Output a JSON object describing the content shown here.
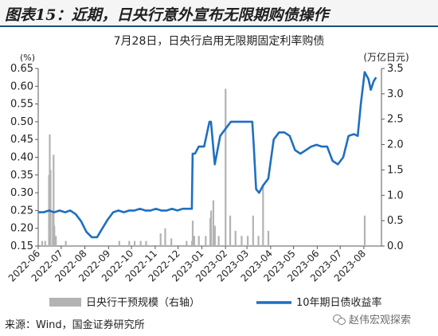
{
  "figure": {
    "title": "图表15：近期，日央行意外宣布无限期购债操作",
    "source": "来源：Wind，国金证券研究所",
    "watermark": "赵伟宏观探索"
  },
  "colors": {
    "line": "#1f6fc0",
    "bar": "#b3b3b3",
    "title_rule": "#1f4e79",
    "axis": "#595959"
  },
  "chart_data": {
    "type": "line",
    "title": "7月28日，日央行启用无限期固定利率购债",
    "left_axis": {
      "unit_label": "(%)",
      "ylim": [
        0.15,
        0.65
      ],
      "ticks": [
        "0.15",
        "0.20",
        "0.25",
        "0.30",
        "0.35",
        "0.40",
        "0.45",
        "0.50",
        "0.55",
        "0.60",
        "0.65"
      ]
    },
    "right_axis": {
      "unit_label": "(万亿日元)",
      "ylim": [
        0,
        3.5
      ],
      "ticks": [
        "0.0",
        "0.5",
        "1.0",
        "1.5",
        "2.0",
        "2.5",
        "3.0",
        "3.5"
      ]
    },
    "x_ticks": [
      "2022-06",
      "2022-07",
      "2022-08",
      "2022-09",
      "2022-10",
      "2022-11",
      "2022-12",
      "2023-01",
      "2023-02",
      "2023-03",
      "2023-04",
      "2023-05",
      "2023-06",
      "2023-07",
      "2023-08"
    ],
    "grid": false,
    "legend_position": "bottom",
    "series": [
      {
        "name": "10年期日债收益率",
        "type": "line",
        "axis": "left",
        "points": [
          [
            "2022-06-01",
            0.245
          ],
          [
            "2022-06-08",
            0.245
          ],
          [
            "2022-06-15",
            0.25
          ],
          [
            "2022-06-22",
            0.245
          ],
          [
            "2022-06-29",
            0.25
          ],
          [
            "2022-07-06",
            0.245
          ],
          [
            "2022-07-13",
            0.25
          ],
          [
            "2022-07-20",
            0.24
          ],
          [
            "2022-07-27",
            0.22
          ],
          [
            "2022-08-03",
            0.19
          ],
          [
            "2022-08-10",
            0.175
          ],
          [
            "2022-08-17",
            0.175
          ],
          [
            "2022-08-24",
            0.2
          ],
          [
            "2022-08-31",
            0.225
          ],
          [
            "2022-09-07",
            0.245
          ],
          [
            "2022-09-14",
            0.25
          ],
          [
            "2022-09-21",
            0.245
          ],
          [
            "2022-09-28",
            0.25
          ],
          [
            "2022-10-05",
            0.25
          ],
          [
            "2022-10-12",
            0.255
          ],
          [
            "2022-10-19",
            0.25
          ],
          [
            "2022-10-26",
            0.25
          ],
          [
            "2022-11-02",
            0.255
          ],
          [
            "2022-11-09",
            0.25
          ],
          [
            "2022-11-16",
            0.25
          ],
          [
            "2022-11-23",
            0.255
          ],
          [
            "2022-11-30",
            0.25
          ],
          [
            "2022-12-07",
            0.255
          ],
          [
            "2022-12-14",
            0.255
          ],
          [
            "2022-12-19",
            0.255
          ],
          [
            "2022-12-20",
            0.41
          ],
          [
            "2022-12-23",
            0.41
          ],
          [
            "2022-12-28",
            0.43
          ],
          [
            "2023-01-04",
            0.43
          ],
          [
            "2023-01-11",
            0.5
          ],
          [
            "2023-01-13",
            0.5
          ],
          [
            "2023-01-18",
            0.38
          ],
          [
            "2023-01-25",
            0.46
          ],
          [
            "2023-02-01",
            0.48
          ],
          [
            "2023-02-08",
            0.5
          ],
          [
            "2023-02-15",
            0.5
          ],
          [
            "2023-02-22",
            0.5
          ],
          [
            "2023-03-01",
            0.5
          ],
          [
            "2023-03-08",
            0.5
          ],
          [
            "2023-03-10",
            0.43
          ],
          [
            "2023-03-13",
            0.31
          ],
          [
            "2023-03-17",
            0.3
          ],
          [
            "2023-03-22",
            0.32
          ],
          [
            "2023-03-29",
            0.34
          ],
          [
            "2023-04-05",
            0.45
          ],
          [
            "2023-04-12",
            0.47
          ],
          [
            "2023-04-19",
            0.47
          ],
          [
            "2023-04-26",
            0.46
          ],
          [
            "2023-05-03",
            0.42
          ],
          [
            "2023-05-10",
            0.41
          ],
          [
            "2023-05-17",
            0.42
          ],
          [
            "2023-05-24",
            0.43
          ],
          [
            "2023-05-31",
            0.435
          ],
          [
            "2023-06-07",
            0.43
          ],
          [
            "2023-06-14",
            0.43
          ],
          [
            "2023-06-21",
            0.39
          ],
          [
            "2023-06-28",
            0.38
          ],
          [
            "2023-07-05",
            0.4
          ],
          [
            "2023-07-12",
            0.46
          ],
          [
            "2023-07-19",
            0.465
          ],
          [
            "2023-07-24",
            0.46
          ],
          [
            "2023-07-28",
            0.55
          ],
          [
            "2023-08-02",
            0.64
          ],
          [
            "2023-08-07",
            0.62
          ],
          [
            "2023-08-10",
            0.59
          ],
          [
            "2023-08-14",
            0.615
          ],
          [
            "2023-08-17",
            0.625
          ]
        ]
      },
      {
        "name": "日央行干预规模（右轴）",
        "type": "bar",
        "axis": "right",
        "points": [
          [
            "2022-06-06",
            0.1
          ],
          [
            "2022-06-10",
            0.1
          ],
          [
            "2022-06-15",
            1.4
          ],
          [
            "2022-06-16",
            2.2
          ],
          [
            "2022-06-17",
            1.5
          ],
          [
            "2022-06-20",
            0.7
          ],
          [
            "2022-06-21",
            1.8
          ],
          [
            "2022-06-22",
            0.4
          ],
          [
            "2022-06-24",
            0.2
          ],
          [
            "2022-07-07",
            0.1
          ],
          [
            "2022-09-15",
            0.1
          ],
          [
            "2022-09-28",
            0.1
          ],
          [
            "2022-10-05",
            0.1
          ],
          [
            "2022-10-13",
            0.1
          ],
          [
            "2022-10-20",
            0.1
          ],
          [
            "2022-11-08",
            0.25
          ],
          [
            "2022-11-14",
            0.35
          ],
          [
            "2022-11-22",
            0.15
          ],
          [
            "2022-12-12",
            0.1
          ],
          [
            "2022-12-19",
            0.1
          ],
          [
            "2022-12-20",
            0.5
          ],
          [
            "2022-12-22",
            0.2
          ],
          [
            "2022-12-28",
            0.2
          ],
          [
            "2023-01-06",
            0.2
          ],
          [
            "2023-01-12",
            0.55
          ],
          [
            "2023-01-13",
            0.7
          ],
          [
            "2023-01-16",
            0.9
          ],
          [
            "2023-01-18",
            0.4
          ],
          [
            "2023-01-23",
            0.2
          ],
          [
            "2023-02-01",
            3.1
          ],
          [
            "2023-02-07",
            0.6
          ],
          [
            "2023-02-14",
            0.3
          ],
          [
            "2023-02-22",
            0.2
          ],
          [
            "2023-03-02",
            0.2
          ],
          [
            "2023-03-09",
            0.6
          ],
          [
            "2023-03-16",
            0.2
          ],
          [
            "2023-03-22",
            1.2
          ],
          [
            "2023-03-29",
            0.3
          ],
          [
            "2023-08-02",
            0.6
          ]
        ]
      }
    ]
  }
}
